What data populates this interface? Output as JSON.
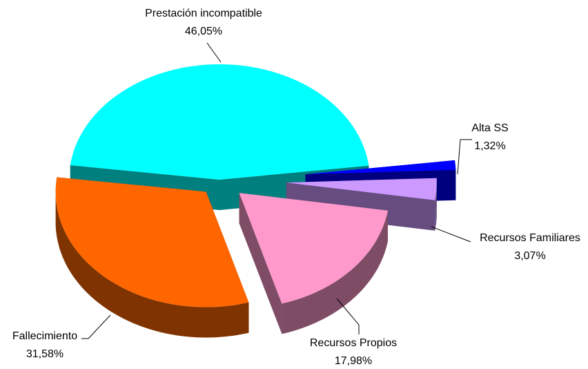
{
  "chart_data": {
    "type": "pie",
    "categories": [
      "Prestación incompatible",
      "Alta SS",
      "Recursos Familiares",
      "Recursos Propios",
      "Fallecimiento"
    ],
    "values": [
      46.05,
      1.32,
      3.07,
      17.98,
      31.58
    ],
    "value_labels": [
      "46,05%",
      "1,32%",
      "3,07%",
      "17,98%",
      "31,58%"
    ],
    "colors": [
      "#00ffff",
      "#0000ff",
      "#cc99ff",
      "#ff99cc",
      "#ff6600"
    ]
  }
}
